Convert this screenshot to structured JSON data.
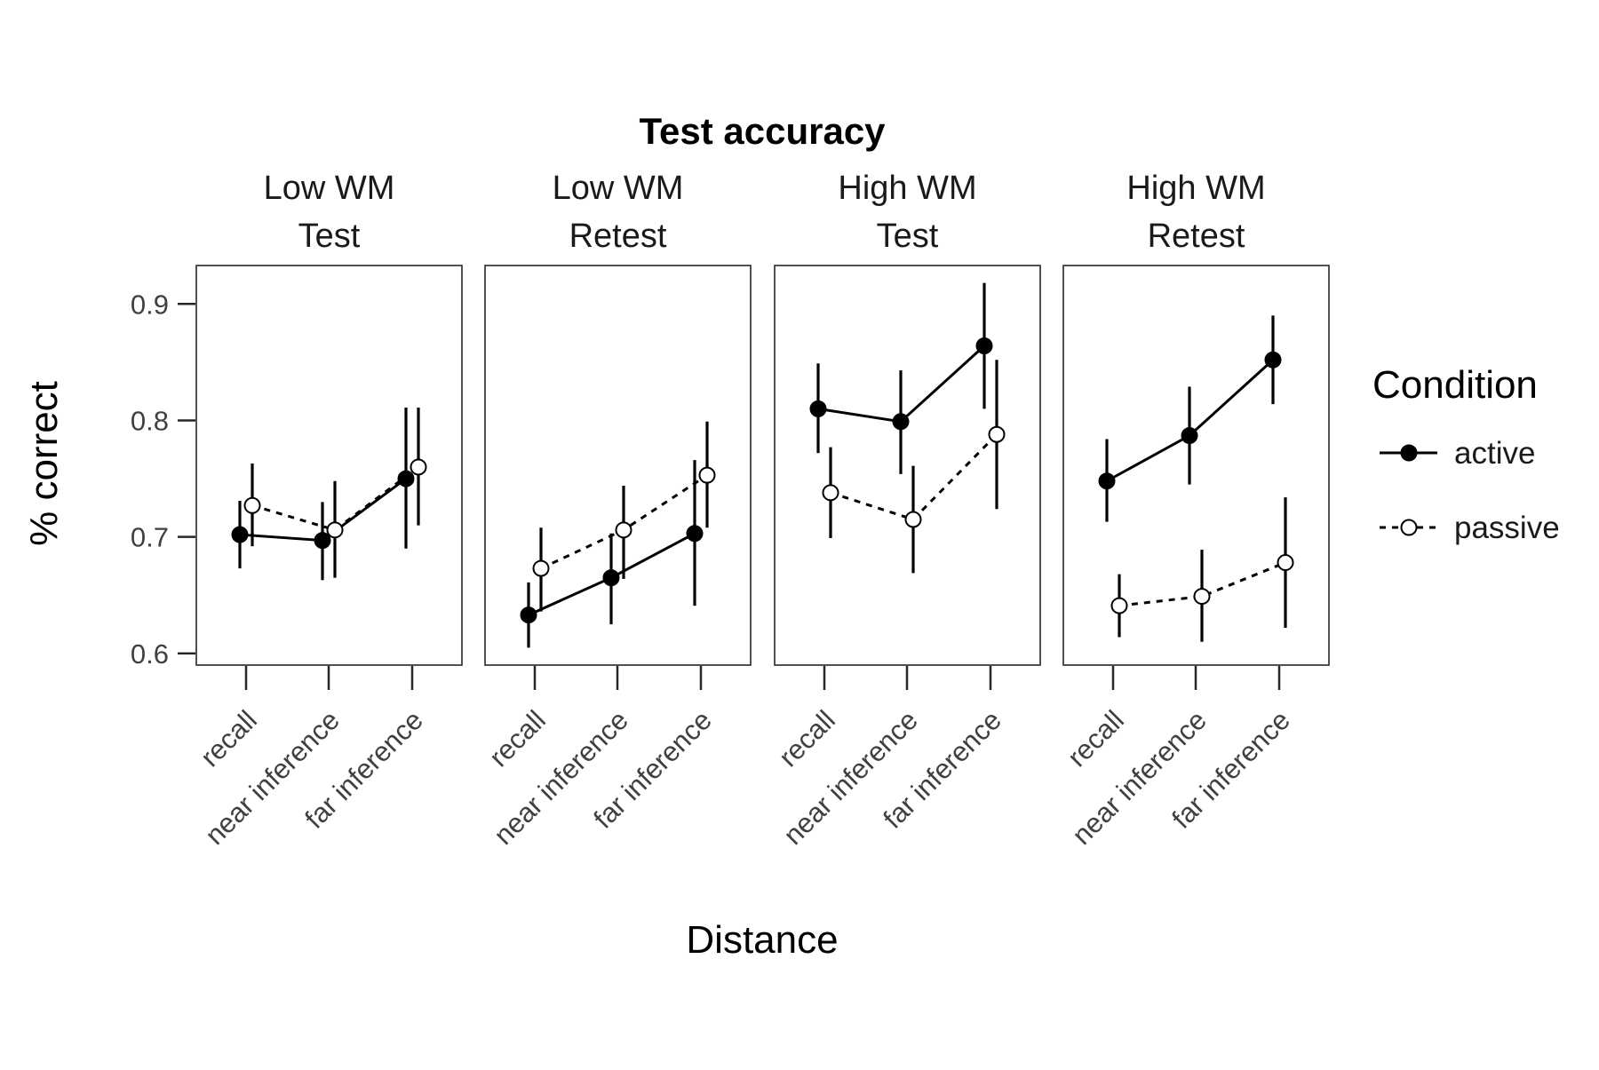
{
  "chart_data": {
    "type": "line",
    "title": "Test accuracy",
    "xlabel": "Distance",
    "ylabel": "% correct",
    "categories": [
      "recall",
      "near inference",
      "far inference"
    ],
    "yticks": [
      "0.6",
      "0.7",
      "0.8",
      "0.9"
    ],
    "ylim": [
      0.59,
      0.933
    ],
    "grid": false,
    "legend": {
      "title": "Condition",
      "placement": "right",
      "entries": [
        "active",
        "passive"
      ]
    },
    "panels": [
      {
        "label_line1": "Low WM",
        "label_line2": "Test",
        "series": [
          {
            "name": "active",
            "values": [
              0.702,
              0.697,
              0.75
            ],
            "lower": [
              0.673,
              0.663,
              0.69
            ],
            "upper": [
              0.731,
              0.73,
              0.811
            ]
          },
          {
            "name": "passive",
            "values": [
              0.727,
              0.706,
              0.76
            ],
            "lower": [
              0.692,
              0.665,
              0.71
            ],
            "upper": [
              0.763,
              0.748,
              0.811
            ]
          }
        ]
      },
      {
        "label_line1": "Low WM",
        "label_line2": "Retest",
        "series": [
          {
            "name": "active",
            "values": [
              0.633,
              0.665,
              0.703
            ],
            "lower": [
              0.605,
              0.625,
              0.641
            ],
            "upper": [
              0.661,
              0.703,
              0.766
            ]
          },
          {
            "name": "passive",
            "values": [
              0.673,
              0.706,
              0.753
            ],
            "lower": [
              0.636,
              0.664,
              0.708
            ],
            "upper": [
              0.708,
              0.744,
              0.799
            ]
          }
        ]
      },
      {
        "label_line1": "High WM",
        "label_line2": "Test",
        "series": [
          {
            "name": "active",
            "values": [
              0.81,
              0.799,
              0.864
            ],
            "lower": [
              0.772,
              0.754,
              0.81
            ],
            "upper": [
              0.849,
              0.843,
              0.918
            ]
          },
          {
            "name": "passive",
            "values": [
              0.738,
              0.715,
              0.788
            ],
            "lower": [
              0.699,
              0.669,
              0.724
            ],
            "upper": [
              0.777,
              0.761,
              0.852
            ]
          }
        ]
      },
      {
        "label_line1": "High WM",
        "label_line2": "Retest",
        "series": [
          {
            "name": "active",
            "values": [
              0.748,
              0.787,
              0.852
            ],
            "lower": [
              0.713,
              0.745,
              0.814
            ],
            "upper": [
              0.784,
              0.829,
              0.89
            ]
          },
          {
            "name": "passive",
            "values": [
              0.641,
              0.649,
              0.678
            ],
            "lower": [
              0.614,
              0.61,
              0.622
            ],
            "upper": [
              0.668,
              0.689,
              0.734
            ]
          }
        ]
      }
    ],
    "colors": {
      "line": "#000000",
      "frame": "#262626",
      "tick": "#262626",
      "passive_fill": "#ffffff"
    }
  }
}
